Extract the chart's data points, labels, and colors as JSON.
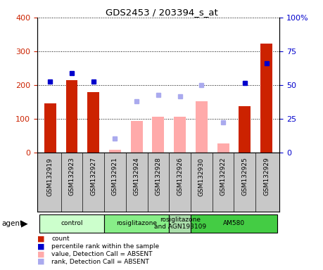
{
  "title": "GDS2453 / 203394_s_at",
  "samples": [
    "GSM132919",
    "GSM132923",
    "GSM132927",
    "GSM132921",
    "GSM132924",
    "GSM132928",
    "GSM132926",
    "GSM132930",
    "GSM132922",
    "GSM132925",
    "GSM132929"
  ],
  "count_values": [
    145,
    215,
    180,
    null,
    null,
    null,
    null,
    null,
    null,
    138,
    322
  ],
  "count_absent": [
    null,
    null,
    null,
    8,
    93,
    107,
    107,
    152,
    28,
    null,
    null
  ],
  "rank_present": [
    52.5,
    58.75,
    52.5,
    null,
    null,
    null,
    null,
    null,
    null,
    51.75,
    66.25
  ],
  "rank_absent": [
    null,
    null,
    null,
    10.5,
    38.0,
    42.5,
    41.75,
    50.0,
    22.5,
    null,
    null
  ],
  "ylim_left": [
    0,
    400
  ],
  "ylim_right": [
    0,
    100
  ],
  "left_ticks": [
    0,
    100,
    200,
    300,
    400
  ],
  "right_ticks": [
    0,
    25,
    50,
    75,
    100
  ],
  "right_tick_labels": [
    "0",
    "25",
    "50",
    "75",
    "100%"
  ],
  "groups": [
    {
      "label": "control",
      "start": 0,
      "end": 3,
      "color": "#ccffcc"
    },
    {
      "label": "rosiglitazone",
      "start": 3,
      "end": 6,
      "color": "#88ee88"
    },
    {
      "label": "rosiglitazone\nand AGN193109",
      "start": 6,
      "end": 7,
      "color": "#aaddaa"
    },
    {
      "label": "AM580",
      "start": 7,
      "end": 11,
      "color": "#44cc44"
    }
  ],
  "bar_width": 0.55,
  "count_color": "#cc2200",
  "count_absent_color": "#ffaaaa",
  "rank_present_color": "#0000cc",
  "rank_absent_color": "#aaaaee",
  "background_color": "#ffffff",
  "tick_area_color": "#c8c8c8",
  "legend_items": [
    {
      "color": "#cc2200",
      "label": "count"
    },
    {
      "color": "#0000cc",
      "label": "percentile rank within the sample"
    },
    {
      "color": "#ffaaaa",
      "label": "value, Detection Call = ABSENT"
    },
    {
      "color": "#aaaaee",
      "label": "rank, Detection Call = ABSENT"
    }
  ]
}
